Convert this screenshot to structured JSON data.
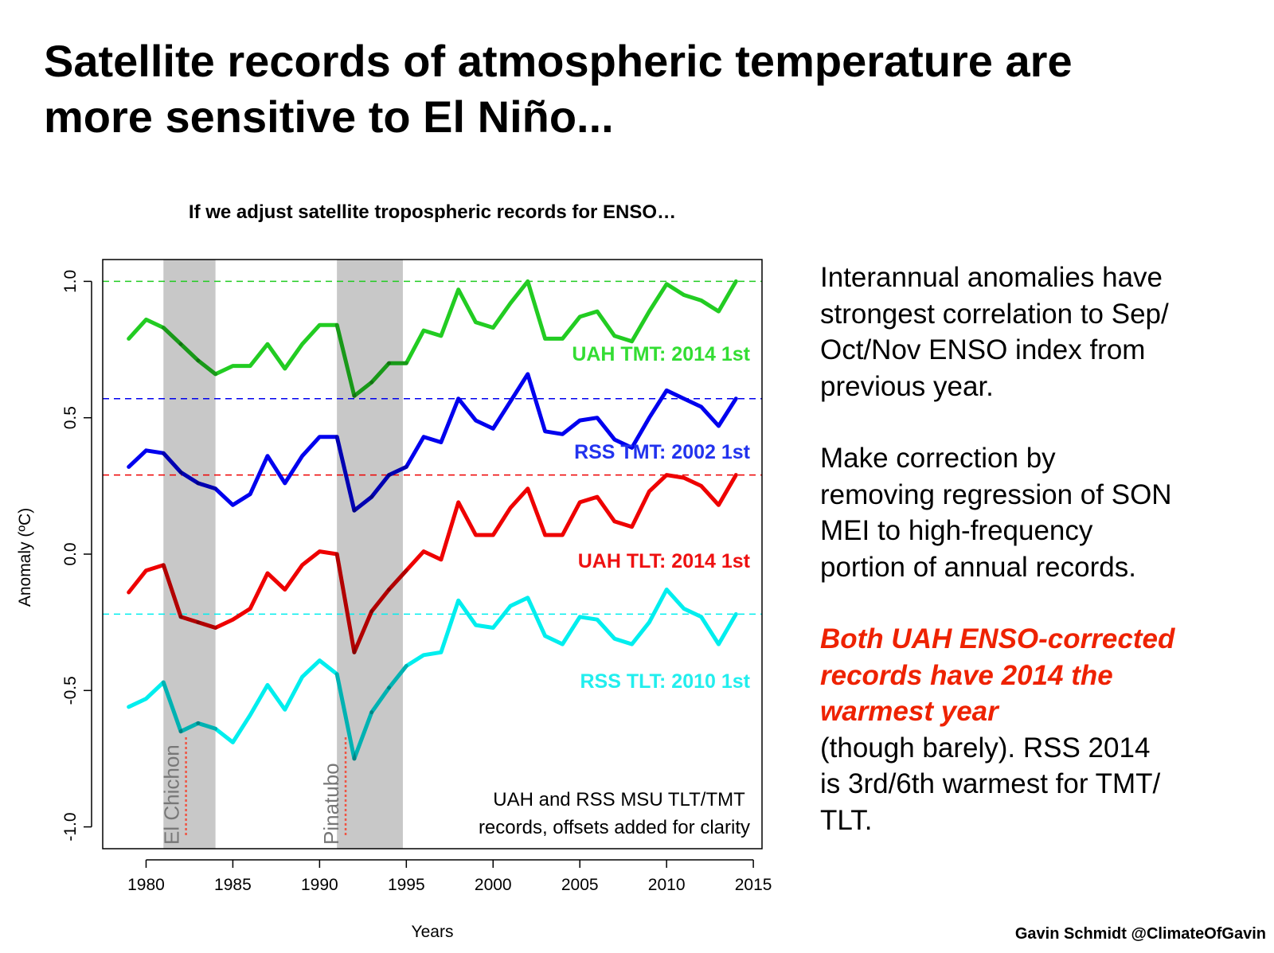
{
  "slide": {
    "title_line1": "Satellite records of atmospheric temperature are",
    "title_line2": "more sensitive to El Niño...",
    "footer": "Gavin Schmidt @ClimateOfGavin"
  },
  "side_text": {
    "para1": [
      "Interannual anomalies have",
      "strongest correlation to Sep/",
      "Oct/Nov ENSO index from",
      "previous year."
    ],
    "para2": [
      "Make correction by",
      "removing regression of SON",
      "MEI to high-frequency",
      "portion of annual records."
    ],
    "highlight": [
      "Both UAH ENSO-corrected",
      "records have 2014 the",
      "warmest year"
    ],
    "para3": [
      "(though barely). RSS 2014",
      "is 3rd/6th warmest for TMT/",
      "TLT."
    ]
  },
  "chart_data": {
    "type": "line",
    "title": "If we adjust satellite tropospheric records for ENSO…",
    "xlabel": "Years",
    "ylabel": "Anomaly (ºC)",
    "xlim": [
      1977.5,
      2015.5
    ],
    "ylim": [
      -1.08,
      1.08
    ],
    "xticks": [
      1980,
      1985,
      1990,
      1995,
      2000,
      2005,
      2010,
      2015
    ],
    "xtick_labels": [
      "1980",
      "1985",
      "1990",
      "1995",
      "2000",
      "2005",
      "2010",
      "2015"
    ],
    "yticks": [
      -1.0,
      -0.5,
      0.0,
      0.5,
      1.0
    ],
    "ytick_labels": [
      "-1.0",
      "-0.5",
      "0.0",
      "0.5",
      "1.0"
    ],
    "grid": false,
    "x": [
      1979,
      1980,
      1981,
      1982,
      1983,
      1984,
      1985,
      1986,
      1987,
      1988,
      1989,
      1990,
      1991,
      1992,
      1993,
      1994,
      1995,
      1996,
      1997,
      1998,
      1999,
      2000,
      2001,
      2002,
      2003,
      2004,
      2005,
      2006,
      2007,
      2008,
      2009,
      2010,
      2011,
      2012,
      2013,
      2014
    ],
    "series": [
      {
        "label": "UAH TMT: 2014 1st",
        "color": "#22cc22",
        "label_color": "#33dd33",
        "reference_line": 1.0,
        "values": [
          0.79,
          0.86,
          0.83,
          0.77,
          0.71,
          0.66,
          0.69,
          0.69,
          0.77,
          0.68,
          0.77,
          0.84,
          0.84,
          0.58,
          0.63,
          0.7,
          0.7,
          0.82,
          0.8,
          0.97,
          0.85,
          0.83,
          0.92,
          1.0,
          0.79,
          0.79,
          0.87,
          0.89,
          0.8,
          0.78,
          0.89,
          0.99,
          0.95,
          0.93,
          0.89,
          1.0
        ]
      },
      {
        "label": "RSS TMT: 2002 1st",
        "color": "#0000ee",
        "label_color": "#2233ee",
        "reference_line": 0.57,
        "values": [
          0.32,
          0.38,
          0.37,
          0.3,
          0.26,
          0.24,
          0.18,
          0.22,
          0.36,
          0.26,
          0.36,
          0.43,
          0.43,
          0.16,
          0.21,
          0.29,
          0.32,
          0.43,
          0.41,
          0.57,
          0.49,
          0.46,
          0.56,
          0.66,
          0.45,
          0.44,
          0.49,
          0.5,
          0.42,
          0.39,
          0.5,
          0.6,
          0.57,
          0.54,
          0.47,
          0.57
        ]
      },
      {
        "label": "UAH TLT: 2014 1st",
        "color": "#ee0000",
        "label_color": "#ee1111",
        "reference_line": 0.29,
        "values": [
          -0.14,
          -0.06,
          -0.04,
          -0.23,
          -0.25,
          -0.27,
          -0.24,
          -0.2,
          -0.07,
          -0.13,
          -0.04,
          0.01,
          0.0,
          -0.36,
          -0.21,
          -0.13,
          -0.06,
          0.01,
          -0.02,
          0.19,
          0.07,
          0.07,
          0.17,
          0.24,
          0.07,
          0.07,
          0.19,
          0.21,
          0.12,
          0.1,
          0.23,
          0.29,
          0.28,
          0.25,
          0.18,
          0.29
        ]
      },
      {
        "label": "RSS TLT: 2010 1st",
        "color": "#00eeee",
        "label_color": "#22eeee",
        "reference_line": -0.22,
        "values": [
          -0.56,
          -0.53,
          -0.47,
          -0.65,
          -0.62,
          -0.64,
          -0.69,
          -0.59,
          -0.48,
          -0.57,
          -0.45,
          -0.39,
          -0.44,
          -0.75,
          -0.58,
          -0.49,
          -0.41,
          -0.37,
          -0.36,
          -0.17,
          -0.26,
          -0.27,
          -0.19,
          -0.16,
          -0.3,
          -0.33,
          -0.23,
          -0.24,
          -0.31,
          -0.33,
          -0.25,
          -0.13,
          -0.2,
          -0.23,
          -0.33,
          -0.22
        ]
      }
    ],
    "shaded_periods": [
      {
        "label": "El Chichon",
        "start": 1981,
        "end": 1984,
        "eruption": 1982.3
      },
      {
        "label": "Pinatubo",
        "start": 1991,
        "end": 1994.8,
        "eruption": 1991.5
      }
    ],
    "annotation": [
      "UAH and RSS MSU TLT/TMT",
      "records, offsets added for clarity"
    ]
  }
}
